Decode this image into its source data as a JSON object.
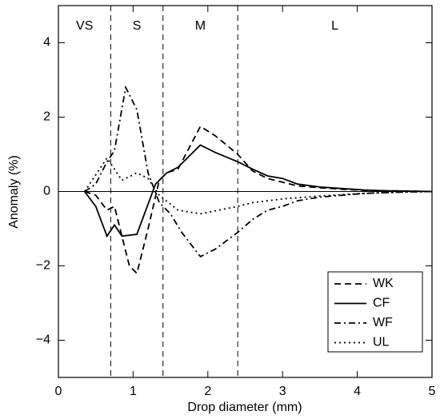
{
  "chart_data": {
    "type": "line",
    "xlabel": "Drop diameter (mm)",
    "ylabel": "Anomaly (%)",
    "xlim": [
      0,
      5
    ],
    "ylim": [
      -5,
      5
    ],
    "xticks": [
      0,
      1,
      2,
      3,
      4,
      5
    ],
    "yticks": [
      {
        "value": -4,
        "label": "−4"
      },
      {
        "value": -2,
        "label": "−2"
      },
      0,
      2,
      4
    ],
    "zero_line": true,
    "regions": {
      "boundaries": [
        0.7,
        1.4,
        2.4
      ],
      "labels": [
        "VS",
        "S",
        "M",
        "L"
      ]
    },
    "legend": "lower right",
    "series": [
      {
        "name": "WK",
        "color": "#000000",
        "style": "dashed",
        "x": [
          0.35,
          0.5,
          0.65,
          0.75,
          0.95,
          1.05,
          1.2,
          1.35,
          1.45,
          1.6,
          1.9,
          2.1,
          2.4,
          2.6,
          2.8,
          3.0,
          3.2,
          3.5,
          3.8,
          4.1,
          4.4,
          4.7,
          5.0
        ],
        "values": [
          0,
          -0.1,
          -0.5,
          -0.4,
          -2.0,
          -2.2,
          -1.0,
          0.3,
          0.5,
          0.6,
          1.75,
          1.5,
          1.0,
          0.55,
          0.35,
          0.25,
          0.15,
          0.1,
          0.06,
          0.03,
          0.02,
          0.01,
          0
        ]
      },
      {
        "name": "CF",
        "color": "#000000",
        "style": "solid",
        "x": [
          0.35,
          0.5,
          0.65,
          0.75,
          0.85,
          1.05,
          1.3,
          1.45,
          1.6,
          1.9,
          2.1,
          2.4,
          2.6,
          2.8,
          3.0,
          3.2,
          3.5,
          3.8,
          4.1,
          4.4,
          4.7,
          5.0
        ],
        "values": [
          0,
          -0.4,
          -1.2,
          -0.9,
          -1.2,
          -1.15,
          0.2,
          0.5,
          0.65,
          1.25,
          1.05,
          0.8,
          0.6,
          0.42,
          0.35,
          0.2,
          0.12,
          0.08,
          0.04,
          0.02,
          0.01,
          0
        ]
      },
      {
        "name": "WF",
        "color": "#000000",
        "style": "dashdot",
        "x": [
          0.35,
          0.5,
          0.65,
          0.75,
          0.9,
          1.05,
          1.2,
          1.35,
          1.5,
          1.65,
          1.9,
          2.1,
          2.4,
          2.6,
          2.8,
          3.0,
          3.2,
          3.5,
          3.8,
          4.1,
          4.4,
          4.7,
          5.0
        ],
        "values": [
          0,
          0.2,
          0.8,
          1.1,
          2.8,
          2.2,
          0.5,
          -0.3,
          -0.6,
          -1.1,
          -1.75,
          -1.55,
          -1.1,
          -0.75,
          -0.5,
          -0.4,
          -0.25,
          -0.15,
          -0.1,
          -0.05,
          -0.03,
          -0.01,
          0
        ]
      },
      {
        "name": "UL",
        "color": "#000000",
        "style": "dotted",
        "x": [
          0.35,
          0.55,
          0.65,
          0.85,
          1.05,
          1.2,
          1.35,
          1.6,
          1.9,
          2.4,
          2.6,
          3.0,
          3.5,
          4.0,
          4.5,
          5.0
        ],
        "values": [
          0,
          0.6,
          0.9,
          0.3,
          0.5,
          0.35,
          -0.1,
          -0.5,
          -0.6,
          -0.4,
          -0.3,
          -0.2,
          -0.12,
          -0.06,
          -0.02,
          0
        ]
      }
    ]
  }
}
